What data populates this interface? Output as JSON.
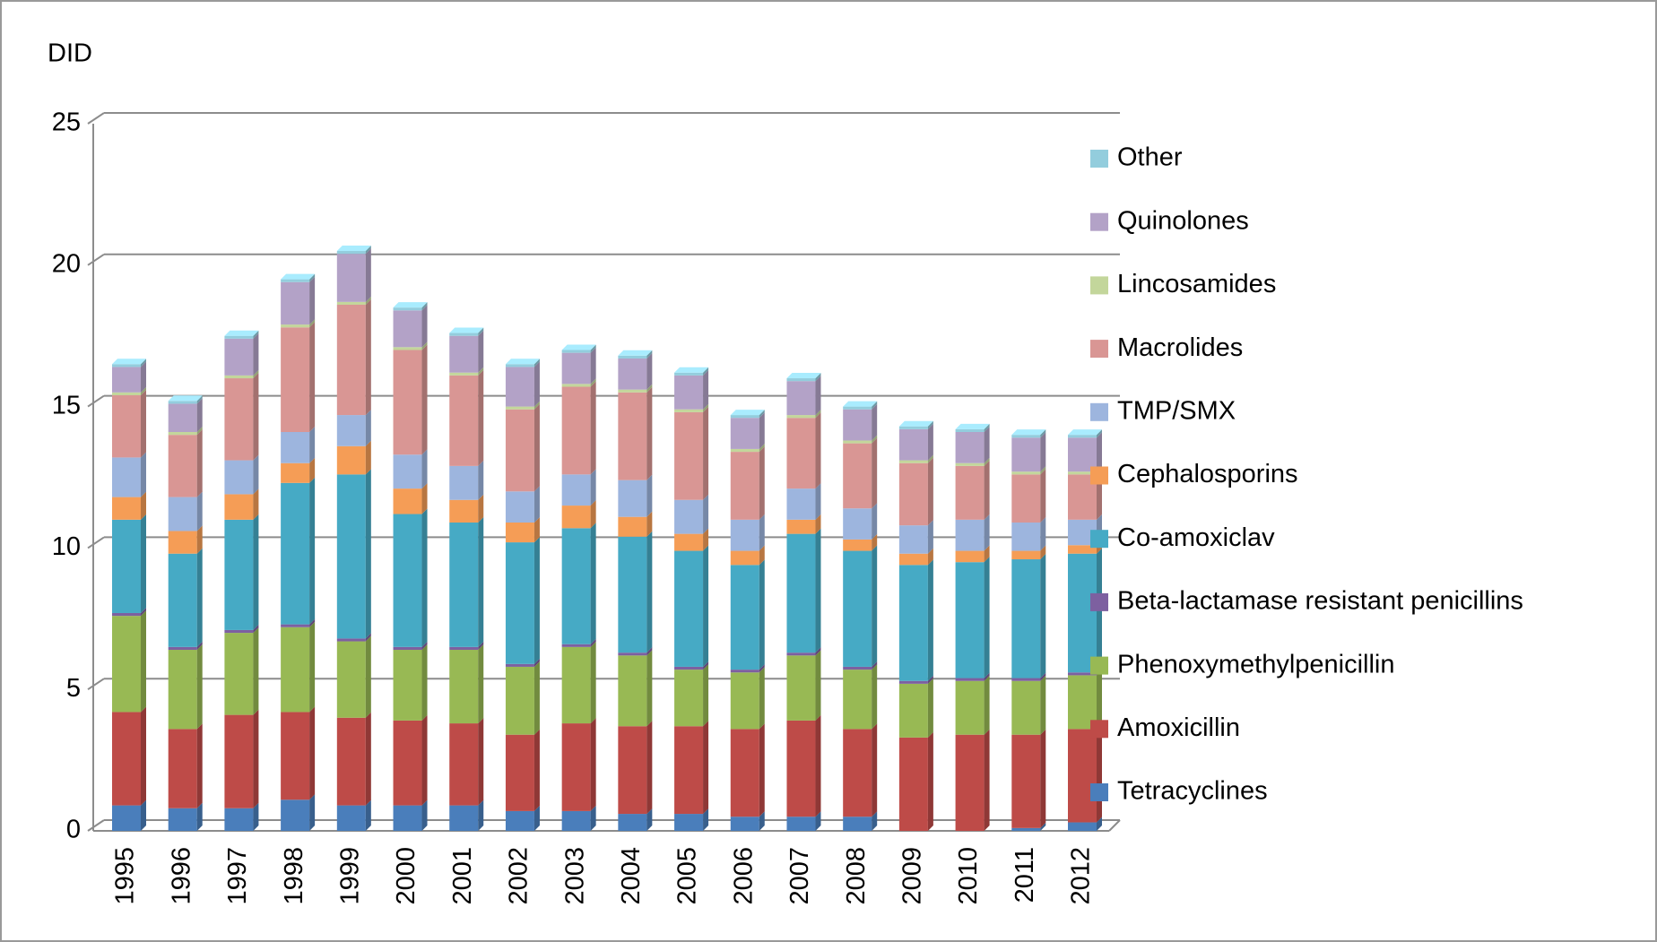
{
  "chart_data": {
    "type": "stacked_bar",
    "y_label": "DID",
    "categories": [
      "1995",
      "1996",
      "1997",
      "1998",
      "1999",
      "2000",
      "2001",
      "2002",
      "2003",
      "2004",
      "2005",
      "2006",
      "2007",
      "2008",
      "2009",
      "2010",
      "2011",
      "2012"
    ],
    "ylim": [
      0,
      25
    ],
    "yticks": [
      0,
      5,
      10,
      15,
      20,
      25
    ],
    "grid": true,
    "legend": "right",
    "series": [
      {
        "name": "Tetracyclines",
        "color": "#4a7ebb",
        "values": [
          0.9,
          0.8,
          0.8,
          1.1,
          0.9,
          0.9,
          0.9,
          0.7,
          0.7,
          0.6,
          0.6,
          0.5,
          0.5,
          0.5,
          0,
          0,
          0.1,
          0.3
        ]
      },
      {
        "name": "Amoxicillin",
        "color": "#be4b48",
        "values": [
          3.3,
          2.8,
          3.3,
          3.1,
          3.1,
          3.0,
          2.9,
          2.7,
          3.1,
          3.1,
          3.1,
          3.1,
          3.4,
          3.1,
          3.3,
          3.4,
          3.3,
          3.3
        ]
      },
      {
        "name": "Phenoxymethylpenicillin",
        "color": "#98b954",
        "values": [
          3.4,
          2.8,
          2.9,
          3.0,
          2.7,
          2.5,
          2.6,
          2.4,
          2.7,
          2.5,
          2.0,
          2.0,
          2.3,
          2.1,
          1.9,
          1.9,
          1.9,
          1.9
        ]
      },
      {
        "name": "Beta-lactamase resistant penicillins",
        "color": "#7d60a0",
        "values": [
          0.1,
          0.1,
          0.1,
          0.1,
          0.1,
          0.1,
          0.1,
          0.1,
          0.1,
          0.1,
          0.1,
          0.1,
          0.1,
          0.1,
          0.1,
          0.1,
          0.1,
          0.1
        ]
      },
      {
        "name": "Co-amoxiclav",
        "color": "#46aac5",
        "values": [
          3.3,
          3.3,
          3.9,
          5.0,
          5.8,
          4.7,
          4.4,
          4.3,
          4.1,
          4.1,
          4.1,
          3.7,
          4.2,
          4.1,
          4.1,
          4.1,
          4.2,
          4.2
        ]
      },
      {
        "name": "Cephalosporins",
        "color": "#f59d56",
        "values": [
          0.8,
          0.8,
          0.9,
          0.7,
          1.0,
          0.9,
          0.8,
          0.7,
          0.8,
          0.7,
          0.6,
          0.5,
          0.5,
          0.4,
          0.4,
          0.4,
          0.3,
          0.3
        ]
      },
      {
        "name": "TMP/SMX",
        "color": "#9db5de",
        "values": [
          1.4,
          1.2,
          1.2,
          1.1,
          1.1,
          1.2,
          1.2,
          1.1,
          1.1,
          1.3,
          1.2,
          1.1,
          1.1,
          1.1,
          1.0,
          1.1,
          1.0,
          0.9
        ]
      },
      {
        "name": "Macrolides",
        "color": "#d99694",
        "values": [
          2.2,
          2.2,
          2.9,
          3.7,
          3.9,
          3.7,
          3.2,
          2.9,
          3.1,
          3.1,
          3.1,
          2.4,
          2.5,
          2.3,
          2.2,
          1.9,
          1.7,
          1.6
        ]
      },
      {
        "name": "Lincosamides",
        "color": "#c3d69b",
        "values": [
          0.1,
          0.1,
          0.1,
          0.1,
          0.1,
          0.1,
          0.1,
          0.1,
          0.1,
          0.1,
          0.1,
          0.1,
          0.1,
          0.1,
          0.1,
          0.1,
          0.1,
          0.1
        ]
      },
      {
        "name": "Quinolones",
        "color": "#b3a2c7",
        "values": [
          0.9,
          1.0,
          1.3,
          1.5,
          1.7,
          1.3,
          1.3,
          1.4,
          1.1,
          1.1,
          1.2,
          1.1,
          1.2,
          1.1,
          1.1,
          1.1,
          1.2,
          1.2
        ]
      },
      {
        "name": "Other",
        "color": "#93cddd",
        "values": [
          0.1,
          0.1,
          0.1,
          0.1,
          0.1,
          0.1,
          0.1,
          0.1,
          0.1,
          0.1,
          0.1,
          0.1,
          0.1,
          0.1,
          0.1,
          0.1,
          0.1,
          0.1
        ]
      }
    ]
  }
}
